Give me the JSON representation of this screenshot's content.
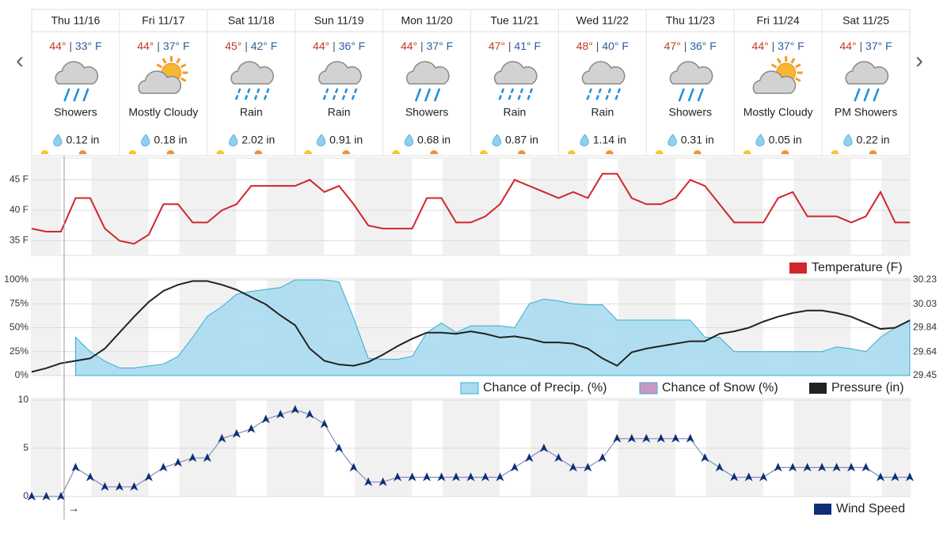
{
  "nav": {
    "prev": "‹",
    "next": "›"
  },
  "separator": " | ",
  "current_wind": "→",
  "days": [
    {
      "day": "Thu 11/16",
      "high": "44°",
      "low": "33° F",
      "condition": "Showers",
      "precip": "0.12 in"
    },
    {
      "day": "Fri 11/17",
      "high": "44°",
      "low": "37° F",
      "condition": "Mostly Cloudy",
      "precip": "0.18 in"
    },
    {
      "day": "Sat 11/18",
      "high": "45°",
      "low": "42° F",
      "condition": "Rain",
      "precip": "2.02 in"
    },
    {
      "day": "Sun 11/19",
      "high": "44°",
      "low": "36° F",
      "condition": "Rain",
      "precip": "0.91 in"
    },
    {
      "day": "Mon 11/20",
      "high": "44°",
      "low": "37° F",
      "condition": "Showers",
      "precip": "0.68 in"
    },
    {
      "day": "Tue 11/21",
      "high": "47°",
      "low": "41° F",
      "condition": "Rain",
      "precip": "0.87 in"
    },
    {
      "day": "Wed 11/22",
      "high": "48°",
      "low": "40° F",
      "condition": "Rain",
      "precip": "1.14 in"
    },
    {
      "day": "Thu 11/23",
      "high": "47°",
      "low": "36° F",
      "condition": "Showers",
      "precip": "0.31 in"
    },
    {
      "day": "Fri 11/24",
      "high": "44°",
      "low": "37° F",
      "condition": "Mostly Cloudy",
      "precip": "0.05 in"
    },
    {
      "day": "Sat 11/25",
      "high": "44°",
      "low": "37° F",
      "condition": "PM Showers",
      "precip": "0.22 in"
    }
  ],
  "chart_data": [
    {
      "type": "line",
      "grid": true,
      "ylim": [
        32.6,
        48.3
      ],
      "yticks": [
        {
          "value": 35,
          "label": "35 F"
        },
        {
          "value": 40,
          "label": "40 F"
        },
        {
          "value": 45,
          "label": "45 F"
        }
      ],
      "series": [
        {
          "name": "Temperature (F)",
          "color": "#d0262d",
          "type": "line",
          "values": [
            37,
            36.5,
            36.5,
            42,
            42,
            37,
            35,
            34.5,
            36,
            41,
            41,
            38,
            38,
            40,
            41,
            44,
            44,
            44,
            44,
            45,
            43,
            44,
            41,
            37.5,
            37,
            37,
            37,
            42,
            42,
            38,
            38,
            39,
            41,
            45,
            44,
            43,
            42,
            43,
            42,
            46,
            46,
            42,
            41,
            41,
            42,
            45,
            44,
            41,
            38,
            38,
            38,
            42,
            43,
            39,
            39,
            39,
            38,
            39,
            43,
            38,
            38
          ]
        }
      ]
    },
    {
      "type": "line",
      "grid": true,
      "ylim": [
        0,
        100
      ],
      "yticks": [
        {
          "value": 0,
          "label": "0%"
        },
        {
          "value": 25,
          "label": "25%"
        },
        {
          "value": 50,
          "label": "50%"
        },
        {
          "value": 75,
          "label": "75%"
        },
        {
          "value": 100,
          "label": "100%"
        }
      ],
      "y2lim": [
        29.45,
        30.23
      ],
      "y2ticks": [
        29.45,
        29.64,
        29.84,
        30.03,
        30.23
      ],
      "series": [
        {
          "name": "Chance of Precip. (%)",
          "color": "#a9dcef",
          "type": "area",
          "values": [
            null,
            null,
            null,
            40,
            25,
            15,
            8,
            8,
            10,
            12,
            20,
            40,
            62,
            72,
            85,
            88,
            90,
            92,
            100,
            100,
            100,
            98,
            60,
            18,
            17,
            17,
            20,
            45,
            55,
            45,
            52,
            52,
            52,
            50,
            75,
            80,
            78,
            75,
            74,
            74,
            58,
            58,
            58,
            58,
            58,
            58,
            40,
            40,
            25,
            25,
            25,
            25,
            25,
            25,
            25,
            30,
            28,
            25,
            40,
            50,
            58
          ]
        },
        {
          "name": "Chance of Snow (%)",
          "color": "#c899c4",
          "type": "area",
          "values": [
            null,
            null,
            null,
            null,
            null,
            null,
            null,
            null,
            null,
            null,
            null,
            null,
            null,
            null,
            null,
            null,
            null,
            null,
            null,
            null,
            null,
            null,
            null,
            null,
            null,
            null,
            null,
            null,
            null,
            null,
            null,
            null,
            null,
            null,
            null,
            null,
            null,
            null,
            null,
            null,
            null,
            null,
            null,
            null,
            null,
            null,
            null,
            null,
            null,
            null,
            null,
            null,
            null,
            null,
            null,
            null,
            null,
            null,
            null,
            null,
            null
          ]
        },
        {
          "name": "Pressure (in)",
          "color": "#222222",
          "type": "line",
          "axis": "y2",
          "values": [
            29.48,
            29.51,
            29.55,
            29.57,
            29.59,
            29.67,
            29.8,
            29.93,
            30.05,
            30.14,
            30.19,
            30.22,
            30.22,
            30.19,
            30.15,
            30.09,
            30.03,
            29.94,
            29.86,
            29.67,
            29.57,
            29.54,
            29.53,
            29.56,
            29.62,
            29.69,
            29.75,
            29.8,
            29.8,
            29.79,
            29.81,
            29.79,
            29.76,
            29.77,
            29.75,
            29.72,
            29.72,
            29.71,
            29.67,
            29.59,
            29.53,
            29.64,
            29.67,
            29.69,
            29.71,
            29.73,
            29.73,
            29.79,
            29.81,
            29.84,
            29.89,
            29.93,
            29.96,
            29.98,
            29.98,
            29.96,
            29.93,
            29.88,
            29.83,
            29.84,
            29.9
          ]
        }
      ]
    },
    {
      "type": "line",
      "grid": true,
      "ylim": [
        0,
        10
      ],
      "yticks": [
        0,
        5,
        10
      ],
      "series": [
        {
          "name": "Wind Speed",
          "color": "#0d2f7a",
          "type": "line",
          "values": [
            0,
            0,
            0,
            3,
            2,
            1,
            1,
            1,
            2,
            3,
            3.5,
            4,
            4,
            6,
            6.5,
            7,
            8,
            8.5,
            9,
            8.5,
            7.5,
            5,
            3,
            1.5,
            1.5,
            2,
            2,
            2,
            2,
            2,
            2,
            2,
            2,
            3,
            4,
            5,
            4,
            3,
            3,
            4,
            6,
            6,
            6,
            6,
            6,
            6,
            4,
            3,
            2,
            2,
            2,
            3,
            3,
            3,
            3,
            3,
            3,
            3,
            2,
            2,
            2
          ]
        }
      ]
    }
  ]
}
